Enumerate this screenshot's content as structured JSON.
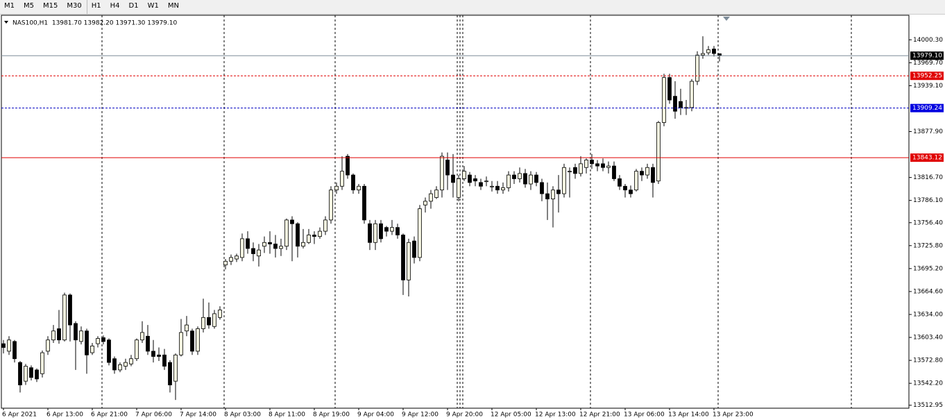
{
  "toolbar": {
    "timeframes": [
      "M1",
      "M5",
      "M15",
      "M30",
      "H1",
      "H4",
      "D1",
      "W1",
      "MN"
    ]
  },
  "chart_data": {
    "type": "candlestick",
    "header": "NAS100,H1  13981.70 13982.20 13971.30 13979.10",
    "categories": [
      "6 Apr 2021",
      null,
      null,
      null,
      null,
      null,
      null,
      null,
      "6 Apr 13:00",
      null,
      null,
      null,
      null,
      null,
      null,
      null,
      "6 Apr 21:00",
      null,
      null,
      null,
      null,
      null,
      null,
      null,
      "7 Apr 06:00",
      null,
      null,
      null,
      null,
      null,
      null,
      null,
      "7 Apr 14:00",
      null,
      null,
      null,
      null,
      null,
      null,
      null,
      "8 Apr 03:00",
      null,
      null,
      null,
      null,
      null,
      null,
      null,
      "8 Apr 11:00",
      null,
      null,
      null,
      null,
      null,
      null,
      null,
      "8 Apr 19:00",
      null,
      null,
      null,
      null,
      null,
      null,
      null,
      "9 Apr 04:00",
      null,
      null,
      null,
      null,
      null,
      null,
      null,
      "9 Apr 12:00",
      null,
      null,
      null,
      null,
      null,
      null,
      null,
      "9 Apr 20:00",
      null,
      null,
      null,
      null,
      null,
      null,
      null,
      "12 Apr 05:00",
      null,
      null,
      null,
      null,
      null,
      null,
      null,
      "12 Apr 13:00",
      null,
      null,
      null,
      null,
      null,
      null,
      null,
      "12 Apr 21:00",
      null,
      null,
      null,
      null,
      null,
      null,
      null,
      "13 Apr 06:00",
      null,
      null,
      null,
      null,
      null,
      null,
      null,
      "13 Apr 14:00",
      null,
      null,
      null,
      null,
      null,
      null,
      null,
      "13 Apr 23:00",
      null
    ],
    "open": [
      13595,
      13585,
      13598,
      13570,
      13545,
      13563,
      13560,
      13555,
      13585,
      13600,
      13615,
      13600,
      13660,
      13622,
      13598,
      13612,
      13583,
      13595,
      13603,
      13600,
      13575,
      13560,
      13565,
      13568,
      13575,
      13600,
      13605,
      13585,
      13580,
      13580,
      13570,
      13545,
      13580,
      13612,
      13612,
      13585,
      13615,
      13630,
      13618,
      13630,
      13700,
      13705,
      13708,
      13710,
      13735,
      13722,
      13712,
      13725,
      13730,
      13728,
      13722,
      13725,
      13760,
      13755,
      13725,
      13730,
      13740,
      13738,
      13745,
      13760,
      13800,
      13805,
      13845,
      13820,
      13800,
      13805,
      13755,
      13730,
      13755,
      13750,
      13745,
      13750,
      13740,
      13680,
      13732,
      13710,
      13780,
      13785,
      13790,
      13800,
      13840,
      13820,
      13790,
      13815,
      13820,
      13815,
      13810,
      13812,
      13805,
      13805,
      13800,
      13803,
      13820,
      13815,
      13822,
      13808,
      13820,
      13810,
      13795,
      13788,
      13800,
      13795,
      13825,
      13830,
      13822,
      13830,
      13840,
      13835,
      13835,
      13830,
      13832,
      13815,
      13805,
      13800,
      13800,
      13825,
      13820,
      13830,
      13812,
      13890,
      13950,
      13925,
      13918,
      13910,
      13910,
      13945,
      13980,
      13983,
      13988,
      13981.7
    ],
    "high": [
      13600,
      13605,
      13600,
      13572,
      13568,
      13566,
      13562,
      13586,
      13605,
      13620,
      13640,
      13663,
      13662,
      13625,
      13618,
      13615,
      13596,
      13605,
      13606,
      13602,
      13578,
      13570,
      13575,
      13580,
      13602,
      13625,
      13620,
      13600,
      13590,
      13588,
      13573,
      13582,
      13628,
      13632,
      13615,
      13618,
      13655,
      13650,
      13640,
      13645,
      13708,
      13714,
      13715,
      13742,
      13745,
      13730,
      13728,
      13738,
      13745,
      13740,
      13735,
      13762,
      13765,
      13757,
      13748,
      13748,
      13745,
      13750,
      13765,
      13805,
      13810,
      13845,
      13848,
      13822,
      13808,
      13808,
      13760,
      13760,
      13760,
      13752,
      13760,
      13755,
      13742,
      13735,
      13738,
      13780,
      13790,
      13800,
      13805,
      13850,
      13850,
      13848,
      13820,
      13832,
      13824,
      13820,
      13815,
      13818,
      13812,
      13812,
      13810,
      13825,
      13825,
      13830,
      13828,
      13825,
      13824,
      13815,
      13810,
      13805,
      13820,
      13835,
      13830,
      13835,
      13845,
      13842,
      13848,
      13840,
      13842,
      13838,
      13838,
      13820,
      13808,
      13806,
      13828,
      13830,
      13835,
      13835,
      13892,
      13955,
      13955,
      13945,
      13935,
      13920,
      13948,
      13985,
      14005,
      13992,
      13992,
      13982.2
    ],
    "low": [
      13582,
      13580,
      13570,
      13530,
      13540,
      13546,
      13544,
      13550,
      13580,
      13596,
      13595,
      13598,
      13598,
      13560,
      13594,
      13555,
      13580,
      13590,
      13594,
      13566,
      13555,
      13557,
      13560,
      13565,
      13572,
      13596,
      13580,
      13570,
      13572,
      13560,
      13530,
      13520,
      13578,
      13605,
      13580,
      13580,
      13610,
      13615,
      13615,
      13627,
      13694,
      13700,
      13704,
      13705,
      13715,
      13705,
      13698,
      13716,
      13715,
      13710,
      13712,
      13720,
      13705,
      13710,
      13722,
      13728,
      13728,
      13735,
      13740,
      13755,
      13795,
      13800,
      13815,
      13795,
      13795,
      13755,
      13720,
      13720,
      13730,
      13738,
      13740,
      13735,
      13660,
      13658,
      13702,
      13705,
      13770,
      13775,
      13788,
      13790,
      13800,
      13790,
      13785,
      13812,
      13805,
      13805,
      13800,
      13805,
      13798,
      13795,
      13795,
      13798,
      13808,
      13810,
      13803,
      13800,
      13805,
      13785,
      13760,
      13750,
      13770,
      13790,
      13790,
      13815,
      13818,
      13822,
      13828,
      13825,
      13825,
      13822,
      13812,
      13800,
      13790,
      13790,
      13798,
      13812,
      13815,
      13790,
      13808,
      13885,
      13915,
      13895,
      13900,
      13900,
      13905,
      13940,
      13975,
      13980,
      13978,
      13971.3
    ],
    "close": [
      13590,
      13600,
      13575,
      13540,
      13565,
      13550,
      13548,
      13583,
      13600,
      13612,
      13600,
      13660,
      13620,
      13600,
      13612,
      13580,
      13592,
      13602,
      13598,
      13570,
      13560,
      13567,
      13570,
      13575,
      13600,
      13610,
      13585,
      13578,
      13578,
      13565,
      13540,
      13580,
      13610,
      13620,
      13585,
      13615,
      13630,
      13620,
      13635,
      13640,
      13705,
      13710,
      13712,
      13735,
      13722,
      13715,
      13720,
      13730,
      13728,
      13722,
      13725,
      13760,
      13755,
      13725,
      13730,
      13740,
      13738,
      13745,
      13760,
      13800,
      13805,
      13825,
      13820,
      13800,
      13805,
      13760,
      13730,
      13755,
      13735,
      13745,
      13750,
      13740,
      13680,
      13730,
      13710,
      13775,
      13785,
      13795,
      13800,
      13845,
      13820,
      13810,
      13815,
      13825,
      13810,
      13812,
      13805,
      13812,
      13805,
      13800,
      13803,
      13820,
      13815,
      13822,
      13808,
      13820,
      13810,
      13795,
      13788,
      13800,
      13795,
      13830,
      13825,
      13822,
      13835,
      13840,
      13835,
      13832,
      13830,
      13832,
      13815,
      13805,
      13800,
      13795,
      13825,
      13820,
      13830,
      13810,
      13890,
      13950,
      13920,
      13905,
      13910,
      13910,
      13945,
      13980,
      13982,
      13987,
      13982,
      13979.1
    ],
    "up_color": "#f5f5e0",
    "down_color": "#000000",
    "ylim": [
      13509,
      14033
    ],
    "yticks": [
      {
        "value": 14000.3,
        "label": "14000.30"
      },
      {
        "value": 13969.7,
        "label": "13969.70"
      },
      {
        "value": 13939.1,
        "label": "13939.10"
      },
      {
        "value": 13877.9,
        "label": "13877.90"
      },
      {
        "value": 13816.7,
        "label": "13816.70"
      },
      {
        "value": 13786.1,
        "label": "13786.10"
      },
      {
        "value": 13756.4,
        "label": "13756.40"
      },
      {
        "value": 13725.8,
        "label": "13725.80"
      },
      {
        "value": 13695.2,
        "label": "13695.20"
      },
      {
        "value": 13664.6,
        "label": "13664.60"
      },
      {
        "value": 13634,
        "label": "13634.00"
      },
      {
        "value": 13603.4,
        "label": "13603.40"
      },
      {
        "value": 13572.8,
        "label": "13572.80"
      },
      {
        "value": 13542.2,
        "label": "13542.20"
      },
      13512.95
    ],
    "levels": [
      {
        "value": 13979.1,
        "label": "13979.10",
        "color": "#7d8c99",
        "dash": false,
        "label_bg": "#000000"
      },
      {
        "value": 13952.25,
        "label": "13952.25",
        "color": "#e00000",
        "dash": true,
        "label_bg": "#e00000"
      },
      {
        "value": 13909.24,
        "label": "13909.24",
        "color": "#0000c0",
        "dash": true,
        "label_bg": "#0000e0"
      },
      {
        "value": 13843.12,
        "label": "13843.12",
        "color": "#e00000",
        "dash": false,
        "label_bg": "#e00000"
      }
    ]
  }
}
